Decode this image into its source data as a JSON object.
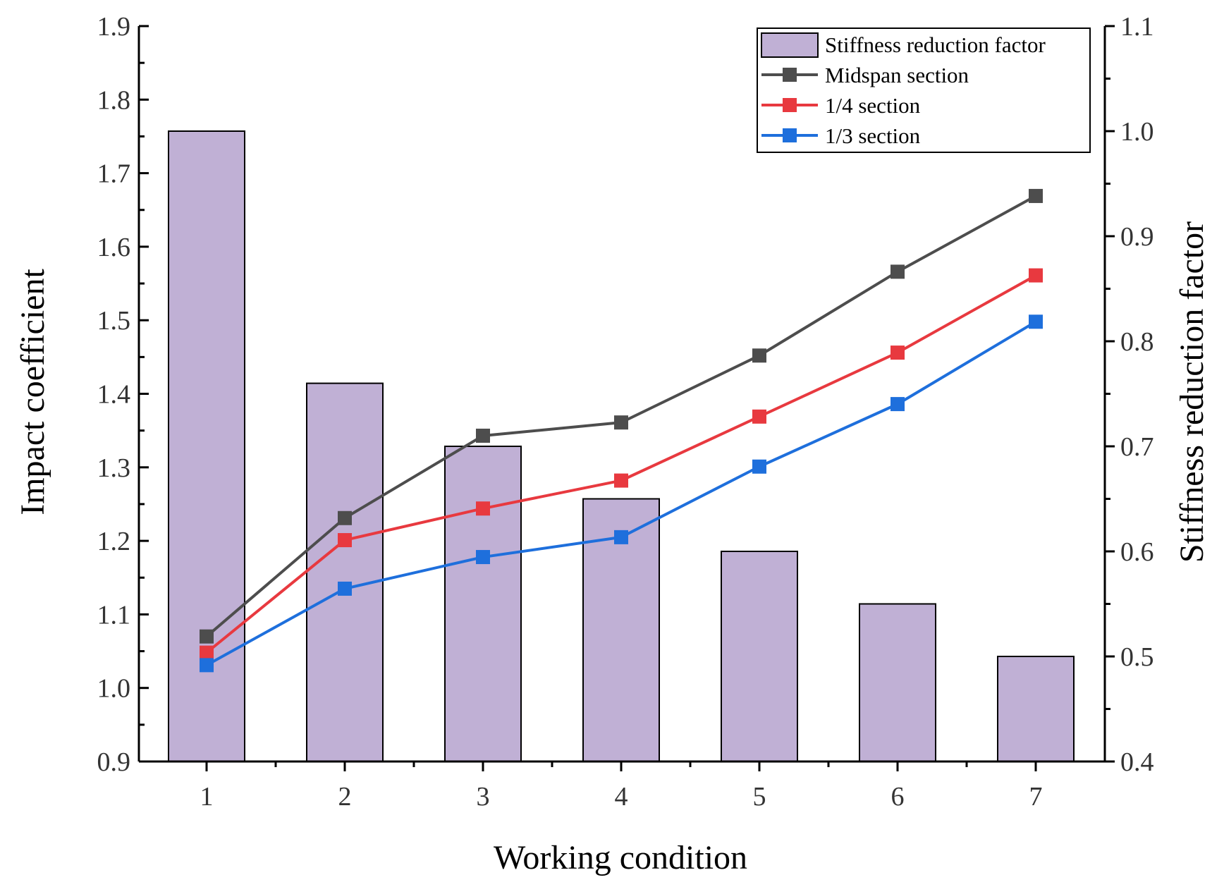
{
  "chart_data": {
    "type": "bar+line",
    "title": "",
    "xlabel": "Working condition",
    "ylabel": "Impact coefficient",
    "y2label": "Stiffness reduction factor",
    "categories": [
      "1",
      "2",
      "3",
      "4",
      "5",
      "6",
      "7"
    ],
    "ylim": [
      0.9,
      1.9
    ],
    "y2lim": [
      0.4,
      1.1
    ],
    "yticks": [
      "0.9",
      "1.0",
      "1.1",
      "1.2",
      "1.3",
      "1.4",
      "1.5",
      "1.6",
      "1.7",
      "1.8",
      "1.9"
    ],
    "y2ticks": [
      "0.4",
      "0.5",
      "0.6",
      "0.7",
      "0.8",
      "0.9",
      "1.0",
      "1.1"
    ],
    "grid": false,
    "legend_position": "top-right",
    "bars": {
      "name": "Stiffness reduction factor",
      "axis": "right",
      "color": "#c0b0d5",
      "values": [
        1.0,
        0.76,
        0.7,
        0.65,
        0.6,
        0.55,
        0.5
      ]
    },
    "series": [
      {
        "name": "Midspan section",
        "color": "#4d4d4d",
        "axis": "left",
        "values": [
          1.07,
          1.231,
          1.343,
          1.361,
          1.452,
          1.566,
          1.669
        ]
      },
      {
        "name": "1/4 section",
        "color": "#e8393f",
        "axis": "left",
        "values": [
          1.048,
          1.201,
          1.244,
          1.282,
          1.369,
          1.456,
          1.561
        ]
      },
      {
        "name": "1/3 section",
        "color": "#1e6fdc",
        "axis": "left",
        "values": [
          1.031,
          1.135,
          1.178,
          1.205,
          1.301,
          1.386,
          1.498
        ]
      }
    ]
  }
}
